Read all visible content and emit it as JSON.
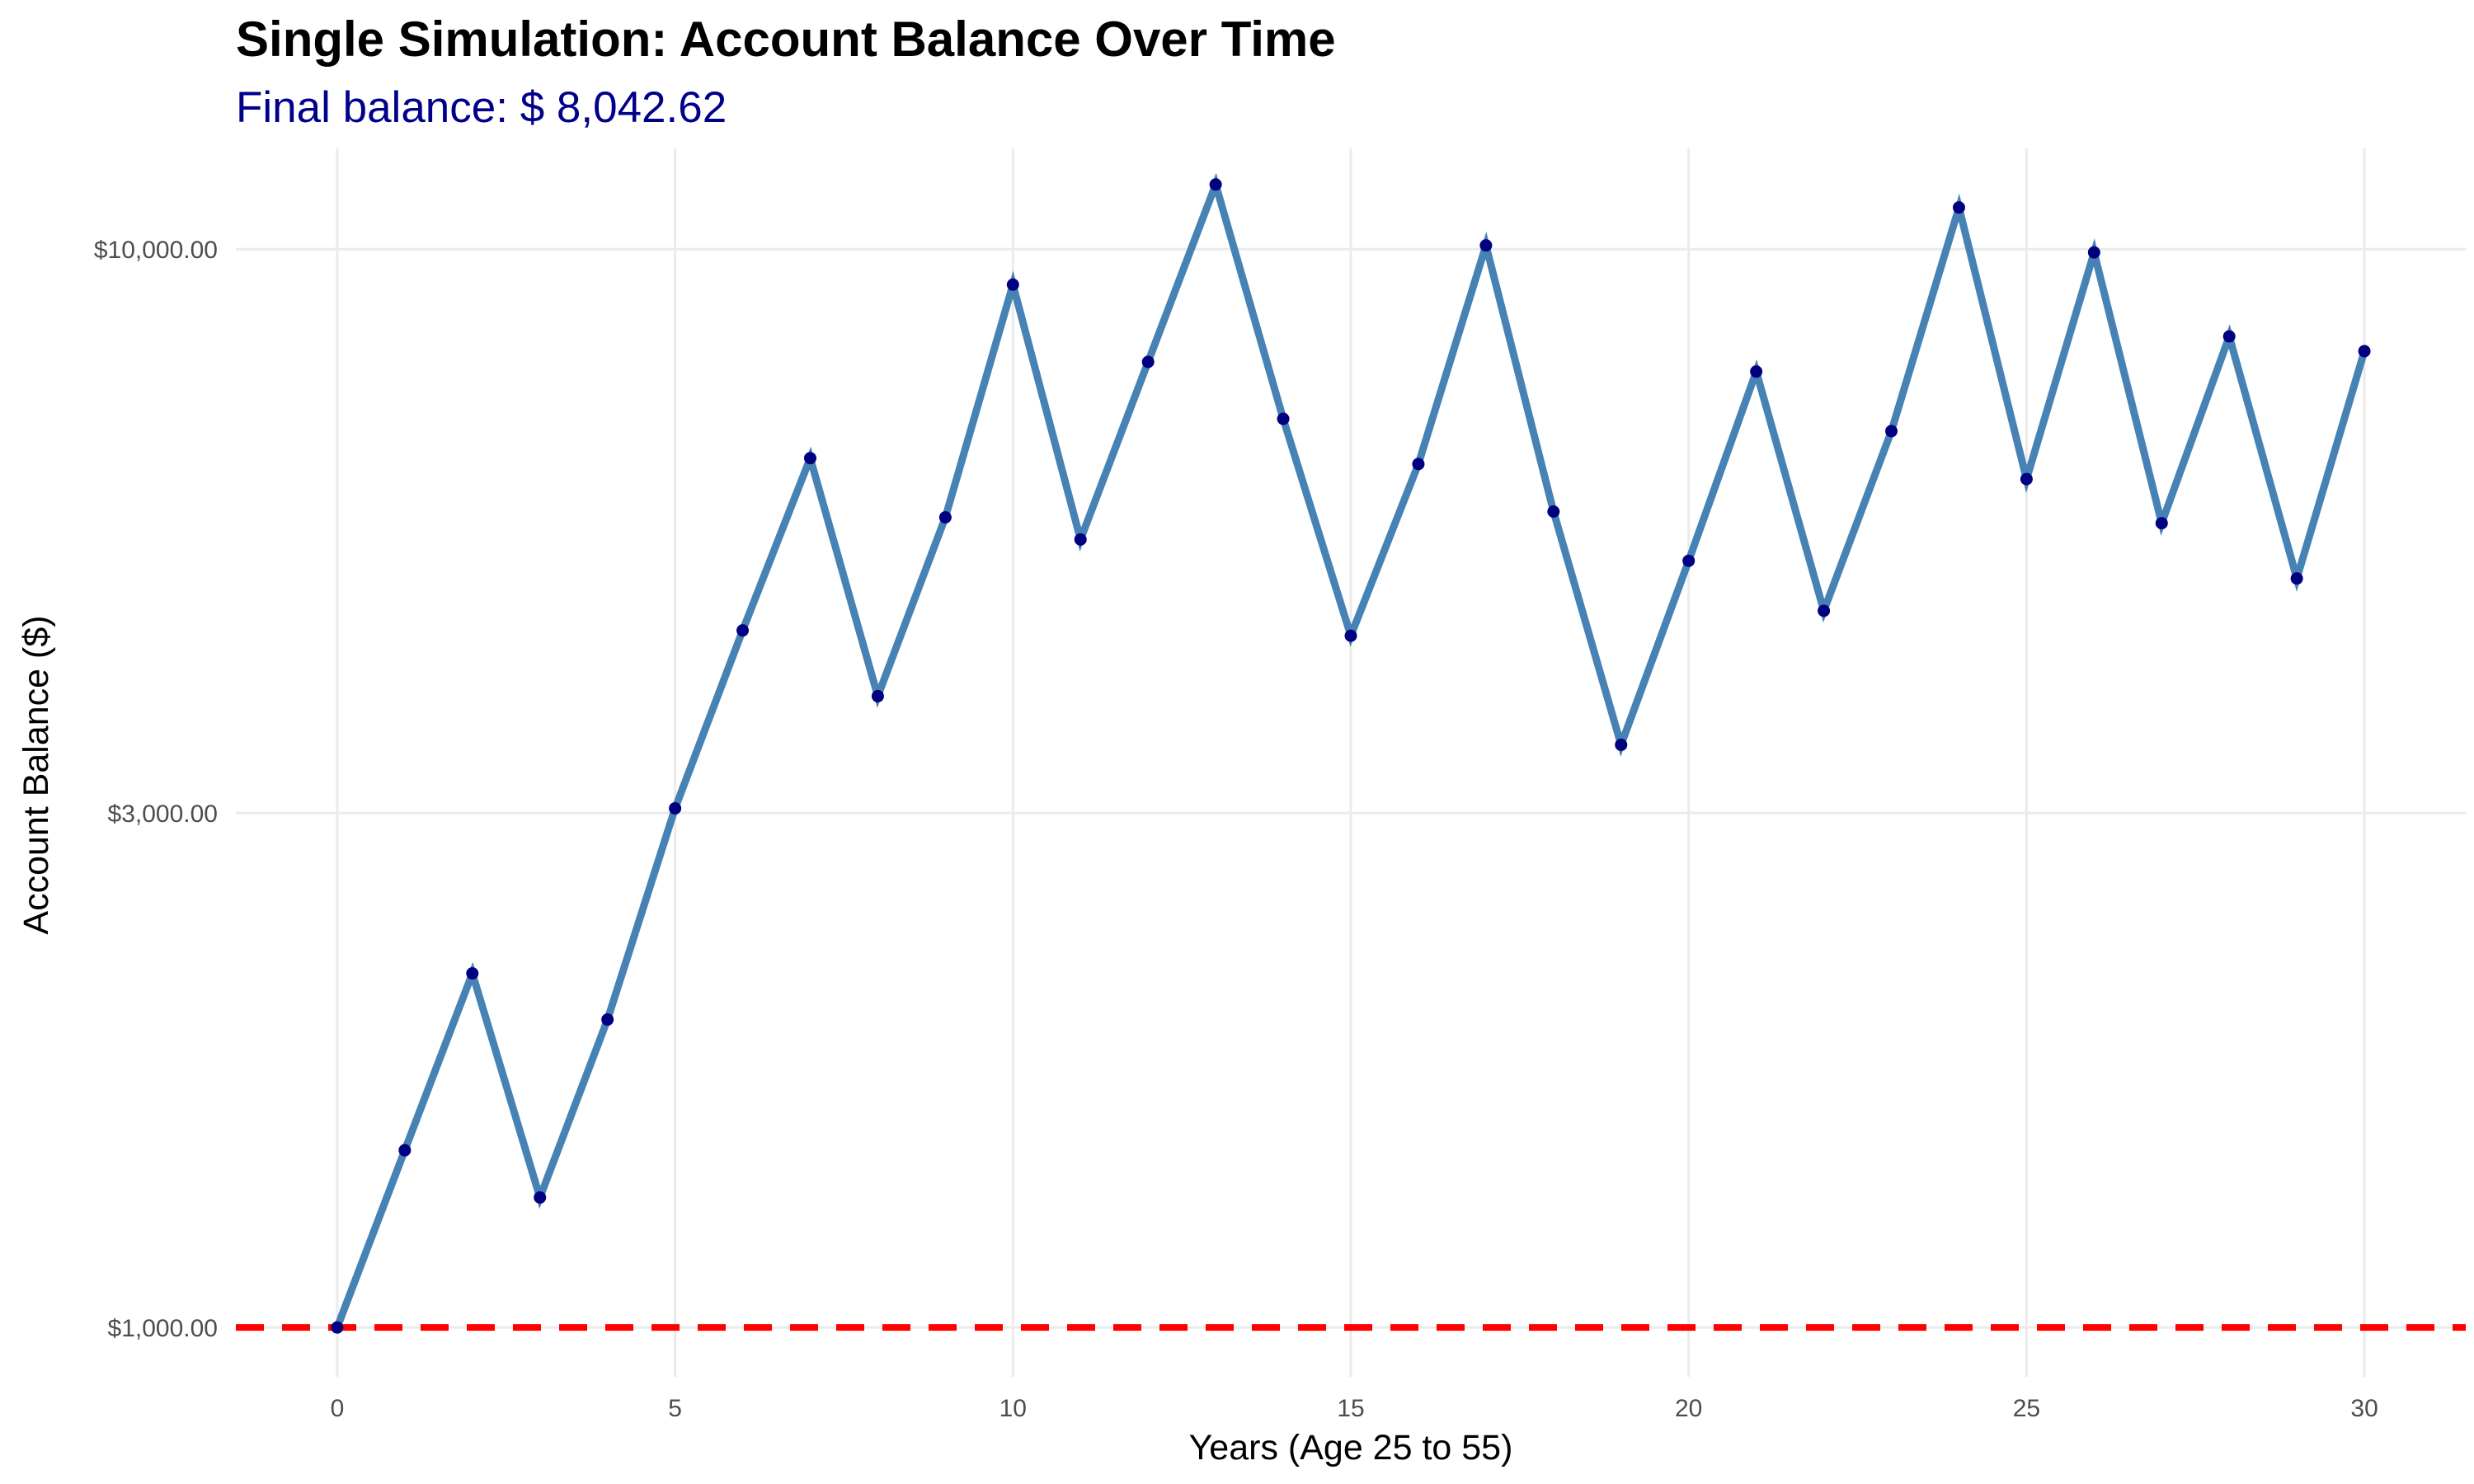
{
  "chart_data": {
    "type": "line",
    "title": "Single Simulation: Account Balance Over Time",
    "subtitle": "Final balance: $ 8,042.62",
    "xlabel": "Years (Age 25 to 55)",
    "ylabel": "Account Balance ($)",
    "y_scale": "log",
    "xlim": [
      -1.5,
      31.5
    ],
    "ylim": [
      900,
      12400
    ],
    "x_ticks": [
      0,
      5,
      10,
      15,
      20,
      25,
      30
    ],
    "y_ticks": [
      1000,
      3000,
      10000
    ],
    "y_tick_labels": [
      "$1,000.00",
      "$3,000.00",
      "$10,000.00"
    ],
    "grid": true,
    "reference_line": {
      "y": 1000,
      "style": "dashed",
      "color": "#ff0000"
    },
    "series": [
      {
        "line_color": "#4682b4",
        "point_color": "#000080",
        "x": [
          0,
          1,
          2,
          3,
          4,
          5,
          6,
          7,
          8,
          9,
          10,
          11,
          12,
          13,
          14,
          15,
          16,
          17,
          18,
          19,
          20,
          21,
          22,
          23,
          24,
          25,
          26,
          27,
          28,
          29,
          30
        ],
        "y": [
          1000,
          1460,
          2130,
          1320,
          1930,
          3030,
          4430,
          6400,
          3850,
          5640,
          9270,
          5380,
          7860,
          11480,
          6960,
          4380,
          6320,
          10080,
          5710,
          3470,
          5140,
          7700,
          4620,
          6780,
          10930,
          6120,
          9930,
          5570,
          8300,
          4950,
          8042.62
        ]
      }
    ]
  },
  "colors": {
    "subtitle": "#00008b",
    "grid": "#ebebeb"
  }
}
